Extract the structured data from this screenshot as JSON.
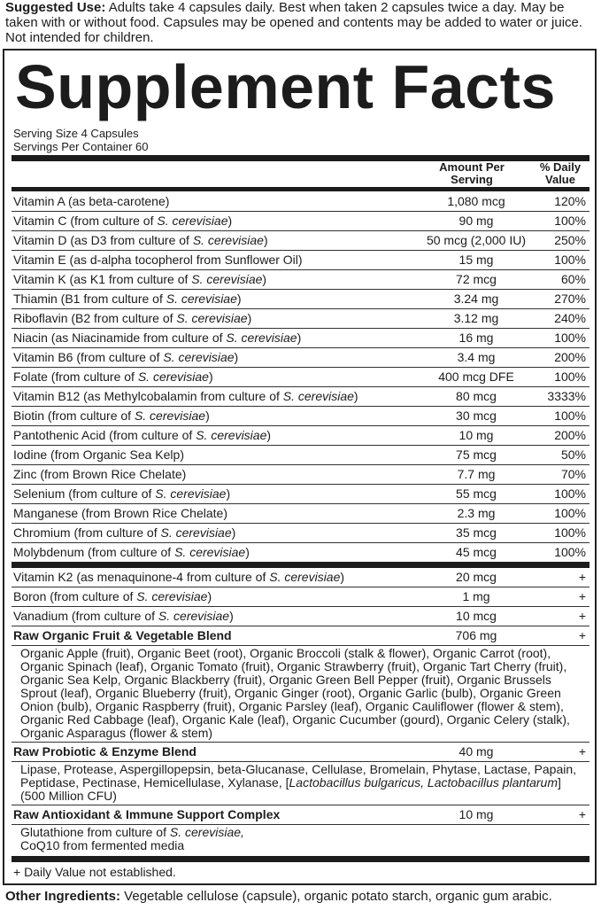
{
  "suggested_use": {
    "label": "Suggested Use:",
    "text": " Adults take 4 capsules daily. Best when taken 2 capsules twice a day. May be taken with or without food. Capsules may be opened and contents may be added to water or juice. Not intended for children."
  },
  "title": "Supplement Facts",
  "serving_size": "Serving Size 4 Capsules",
  "servings_per_container": "Servings Per Container 60",
  "headers": {
    "amount": "Amount Per Serving",
    "dv": "% Daily Value"
  },
  "nutrients": [
    {
      "pre": "Vitamin A (as beta-carotene)",
      "ital": "",
      "post": "",
      "amount": "1,080 mcg",
      "dv": "120%"
    },
    {
      "pre": "Vitamin C (from culture of ",
      "ital": "S. cerevisiae",
      "post": ")",
      "amount": "90 mg",
      "dv": "100%"
    },
    {
      "pre": "Vitamin D (as D3 from culture of ",
      "ital": "S. cerevisiae",
      "post": ")",
      "amount": "50 mcg (2,000 IU)",
      "dv": "250%"
    },
    {
      "pre": "Vitamin E (as d-alpha tocopherol from Sunflower Oil)",
      "ital": "",
      "post": "",
      "amount": "15 mg",
      "dv": "100%"
    },
    {
      "pre": "Vitamin K (as K1 from culture of ",
      "ital": "S. cerevisiae",
      "post": ")",
      "amount": "72 mcg",
      "dv": "60%"
    },
    {
      "pre": "Thiamin (B1 from culture of ",
      "ital": "S. cerevisiae",
      "post": ")",
      "amount": "3.24 mg",
      "dv": "270%"
    },
    {
      "pre": "Riboflavin (B2 from culture of ",
      "ital": "S. cerevisiae",
      "post": ")",
      "amount": "3.12 mg",
      "dv": "240%"
    },
    {
      "pre": "Niacin (as Niacinamide from culture of ",
      "ital": "S. cerevisiae",
      "post": ")",
      "amount": "16 mg",
      "dv": "100%"
    },
    {
      "pre": "Vitamin B6 (from culture of ",
      "ital": "S. cerevisiae",
      "post": ")",
      "amount": "3.4 mg",
      "dv": "200%"
    },
    {
      "pre": "Folate (from culture of ",
      "ital": "S. cerevisiae",
      "post": ")",
      "amount": "400 mcg DFE",
      "dv": "100%"
    },
    {
      "pre": "Vitamin B12 (as Methylcobalamin from culture of ",
      "ital": "S. cerevisiae",
      "post": ")",
      "amount": "80 mcg",
      "dv": "3333%"
    },
    {
      "pre": "Biotin (from culture of ",
      "ital": "S. cerevisiae",
      "post": ")",
      "amount": "30 mcg",
      "dv": "100%"
    },
    {
      "pre": "Pantothenic Acid (from culture of ",
      "ital": "S. cerevisiae",
      "post": ")",
      "amount": "10 mg",
      "dv": "200%"
    },
    {
      "pre": "Iodine (from Organic Sea Kelp)",
      "ital": "",
      "post": "",
      "amount": "75 mcg",
      "dv": "50%"
    },
    {
      "pre": "Zinc (from Brown Rice Chelate)",
      "ital": "",
      "post": "",
      "amount": "7.7 mg",
      "dv": "70%"
    },
    {
      "pre": "Selenium (from culture of ",
      "ital": "S. cerevisiae",
      "post": ")",
      "amount": "55 mcg",
      "dv": "100%"
    },
    {
      "pre": "Manganese (from Brown Rice Chelate)",
      "ital": "",
      "post": "",
      "amount": "2.3 mg",
      "dv": "100%"
    },
    {
      "pre": "Chromium (from culture of ",
      "ital": "S. cerevisiae",
      "post": ")",
      "amount": "35 mcg",
      "dv": "100%"
    },
    {
      "pre": "Molybdenum (from culture of ",
      "ital": "S. cerevisiae",
      "post": ")",
      "amount": "45 mcg",
      "dv": "100%"
    }
  ],
  "other_nutrients": [
    {
      "pre": "Vitamin K2 (as menaquinone-4 from culture of ",
      "ital": "S. cerevisiae",
      "post": ")",
      "amount": "20 mcg",
      "dv": "+"
    },
    {
      "pre": "Boron (from culture of ",
      "ital": "S. cerevisiae",
      "post": ")",
      "amount": "1 mg",
      "dv": "+"
    },
    {
      "pre": "Vanadium (from culture of ",
      "ital": "S. cerevisiae",
      "post": ")",
      "amount": "10 mcg",
      "dv": "+"
    }
  ],
  "blends": [
    {
      "name": "Raw Organic Fruit & Vegetable Blend",
      "amount": "706 mg",
      "dv": "+",
      "desc_pre": "Organic Apple (fruit), Organic Beet (root), Organic Broccoli (stalk & flower), Organic Carrot (root), Organic Spinach (leaf), Organic Tomato (fruit), Organic Strawberry (fruit), Organic Tart Cherry (fruit), Organic Sea Kelp, Organic Blackberry (fruit), Organic Green Bell Pepper (fruit), Organic Brussels Sprout (leaf), Organic Blueberry (fruit), Organic Ginger (root), Organic Garlic (bulb), Organic Green Onion (bulb), Organic Raspberry (fruit), Organic Parsley (leaf), Organic Cauliflower (flower & stem), Organic Red Cabbage (leaf), Organic Kale (leaf), Organic Cucumber (gourd), Organic Celery (stalk), Organic Asparagus (flower & stem)",
      "desc_ital": "",
      "desc_post": ""
    },
    {
      "name": "Raw Probiotic & Enzyme Blend",
      "amount": "40 mg",
      "dv": "+",
      "desc_pre": "Lipase, Protease, Aspergillopepsin, beta-Glucanase, Cellulase, Bromelain, Phytase, Lactase, Papain, Peptidase, Pectinase, Hemicellulase, Xylanase, [",
      "desc_ital": "Lactobacillus bulgaricus, Lactobacillus plantarum",
      "desc_post": "] (500 Million CFU)"
    },
    {
      "name": "Raw Antioxidant & Immune Support Complex",
      "amount": "10 mg",
      "dv": "+",
      "desc_pre": "Glutathione from culture of ",
      "desc_ital": "S. cerevisiae,",
      "desc_post": ""
    }
  ],
  "antioxidant_line2": "CoQ10 from fermented media",
  "footnote": "+ Daily Value not established.",
  "other_ingredients": {
    "label": "Other Ingredients:",
    "text": " Vegetable cellulose (capsule), organic potato starch, organic gum arabic."
  }
}
